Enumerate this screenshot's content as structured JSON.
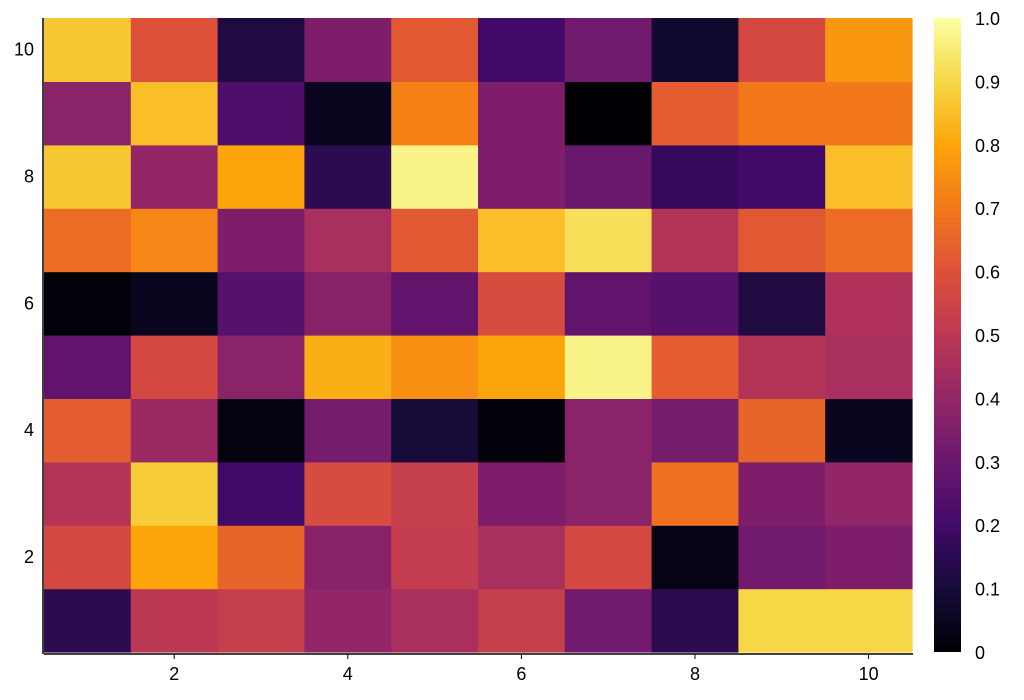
{
  "chart_data": {
    "type": "heatmap",
    "title": "",
    "xlabel": "",
    "ylabel": "",
    "colormap": "inferno",
    "x": [
      1,
      2,
      3,
      4,
      5,
      6,
      7,
      8,
      9,
      10
    ],
    "y": [
      1,
      2,
      3,
      4,
      5,
      6,
      7,
      8,
      9,
      10
    ],
    "xlim": [
      0.5,
      10.5
    ],
    "ylim": [
      0.5,
      10.5
    ],
    "xticks": [
      "2",
      "4",
      "6",
      "8",
      "10"
    ],
    "yticks": [
      "2",
      "4",
      "6",
      "8",
      "10"
    ],
    "colorbar": {
      "range": [
        0,
        1
      ],
      "ticks": [
        "0",
        "0.1",
        "0.2",
        "0.3",
        "0.4",
        "0.5",
        "0.6",
        "0.7",
        "0.8",
        "0.9",
        "1.0"
      ]
    },
    "grid": false,
    "z": [
      [
        0.15,
        0.5,
        0.53,
        0.4,
        0.45,
        0.53,
        0.32,
        0.15,
        0.9,
        0.9
      ],
      [
        0.57,
        0.8,
        0.65,
        0.37,
        0.52,
        0.45,
        0.57,
        0.03,
        0.32,
        0.35
      ],
      [
        0.48,
        0.88,
        0.2,
        0.58,
        0.53,
        0.35,
        0.38,
        0.68,
        0.35,
        0.4
      ],
      [
        0.63,
        0.42,
        0.02,
        0.33,
        0.1,
        0.01,
        0.38,
        0.33,
        0.65,
        0.05
      ],
      [
        0.28,
        0.57,
        0.38,
        0.82,
        0.75,
        0.8,
        0.97,
        0.63,
        0.48,
        0.45
      ],
      [
        0.01,
        0.05,
        0.25,
        0.37,
        0.28,
        0.58,
        0.28,
        0.25,
        0.12,
        0.47
      ],
      [
        0.67,
        0.73,
        0.35,
        0.45,
        0.62,
        0.85,
        0.92,
        0.48,
        0.62,
        0.67
      ],
      [
        0.87,
        0.4,
        0.8,
        0.15,
        0.97,
        0.35,
        0.3,
        0.17,
        0.2,
        0.85
      ],
      [
        0.38,
        0.85,
        0.23,
        0.05,
        0.72,
        0.35,
        0.0,
        0.63,
        0.7,
        0.7
      ],
      [
        0.87,
        0.6,
        0.12,
        0.35,
        0.62,
        0.2,
        0.32,
        0.08,
        0.57,
        0.77
      ]
    ]
  }
}
